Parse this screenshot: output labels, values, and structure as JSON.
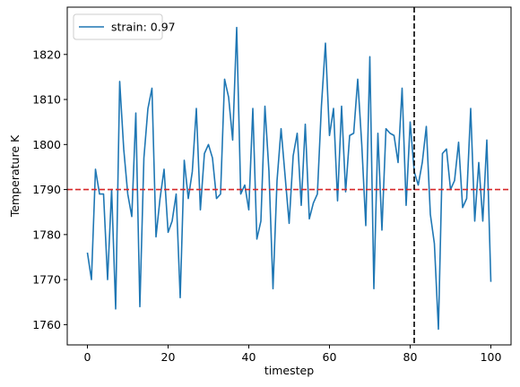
{
  "chart_data": {
    "type": "line",
    "title": "",
    "xlabel": "timestep",
    "ylabel": "Temperature K",
    "xlim": [
      -5,
      105
    ],
    "ylim": [
      1755.5,
      1830.5
    ],
    "xticks": [
      0,
      20,
      40,
      60,
      80,
      100
    ],
    "yticks": [
      1760,
      1770,
      1780,
      1790,
      1800,
      1810,
      1820
    ],
    "grid": false,
    "legend_position": "top-left",
    "series": [
      {
        "name": "strain: 0.97",
        "color": "#1f77b4",
        "x": [
          0,
          1,
          2,
          3,
          4,
          5,
          6,
          7,
          8,
          9,
          10,
          11,
          12,
          13,
          14,
          15,
          16,
          17,
          18,
          19,
          20,
          21,
          22,
          23,
          24,
          25,
          26,
          27,
          28,
          29,
          30,
          31,
          32,
          33,
          34,
          35,
          36,
          37,
          38,
          39,
          40,
          41,
          42,
          43,
          44,
          45,
          46,
          47,
          48,
          49,
          50,
          51,
          52,
          53,
          54,
          55,
          56,
          57,
          58,
          59,
          60,
          61,
          62,
          63,
          64,
          65,
          66,
          67,
          68,
          69,
          70,
          71,
          72,
          73,
          74,
          75,
          76,
          77,
          78,
          79,
          80,
          81,
          82,
          83,
          84,
          85,
          86,
          87,
          88,
          89,
          90,
          91,
          92,
          93,
          94,
          95,
          96,
          97,
          98,
          99,
          100
        ],
        "values": [
          1776,
          1770,
          1794.5,
          1789,
          1789,
          1770,
          1790,
          1763.5,
          1814,
          1799,
          1789,
          1784,
          1807,
          1764,
          1797,
          1808,
          1812.5,
          1779.5,
          1788,
          1794.5,
          1780.5,
          1783,
          1789,
          1766,
          1796.5,
          1788,
          1794,
          1808,
          1785.5,
          1798,
          1800,
          1797,
          1788,
          1789,
          1814.5,
          1810.5,
          1801,
          1826,
          1789,
          1791,
          1785.5,
          1808,
          1779,
          1783,
          1808.5,
          1794,
          1768,
          1792,
          1803.5,
          1793,
          1782.5,
          1797.5,
          1802.5,
          1786.5,
          1804.5,
          1783.5,
          1787,
          1789,
          1808.5,
          1822.5,
          1802,
          1808,
          1787.5,
          1808.5,
          1789.5,
          1802,
          1802.5,
          1814.5,
          1800,
          1782,
          1819.5,
          1768,
          1802.5,
          1781,
          1803.5,
          1802.5,
          1802,
          1796,
          1812.5,
          1786.5,
          1805,
          1794,
          1791,
          1796,
          1804,
          1784.5,
          1778,
          1759,
          1798,
          1799,
          1790,
          1792,
          1800.5,
          1786,
          1788,
          1808,
          1783,
          1796,
          1783,
          1801,
          1769.5
        ]
      }
    ],
    "annotations": [
      {
        "type": "hline",
        "y": 1790,
        "color": "#d62728",
        "style": "dashed"
      },
      {
        "type": "vline",
        "x": 81,
        "color": "#000000",
        "style": "dashed"
      }
    ]
  }
}
